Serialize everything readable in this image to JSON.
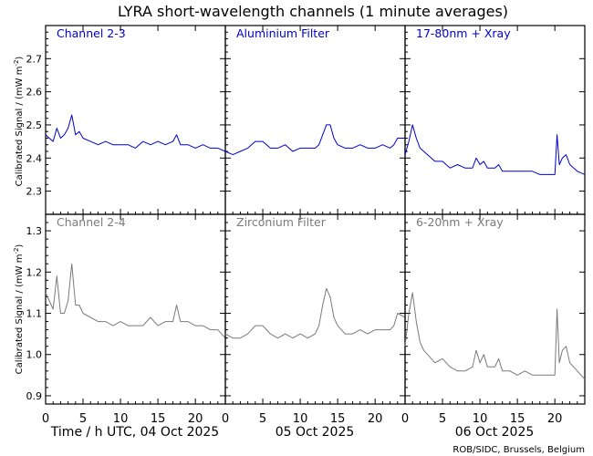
{
  "title": "LYRA short-wavelength channels (1 minute averages)",
  "credit": "ROB/SIDC, Brussels, Belgium",
  "ylabel_main": "Calibrated Signal / (mW m",
  "ylabel_sup": "-2",
  "ylabel_close": ")",
  "colors": {
    "top": "#0000cc",
    "bottom": "#7a7a7a",
    "axis": "#000000"
  },
  "x_ticks": [
    "0",
    "5",
    "10",
    "15",
    "20"
  ],
  "x_day_labels": [
    "Time / h UTC, 04 Oct 2025",
    "05 Oct 2025",
    "06 Oct 2025"
  ],
  "chart_data": [
    {
      "type": "line",
      "row": "top",
      "ylim": [
        2.23,
        2.8
      ],
      "yticks": [
        "2.3",
        "2.4",
        "2.5",
        "2.6",
        "2.7"
      ],
      "panels": [
        {
          "label": "Channel 2-3",
          "x": [
            0,
            0.5,
            1,
            1.5,
            2,
            2.5,
            3,
            3.5,
            4,
            4.5,
            5,
            6,
            7,
            8,
            9,
            10,
            11,
            12,
            13,
            14,
            15,
            16,
            17,
            17.5,
            18,
            19,
            20,
            21,
            22,
            23,
            24
          ],
          "y": [
            2.47,
            2.46,
            2.45,
            2.49,
            2.46,
            2.47,
            2.49,
            2.53,
            2.47,
            2.48,
            2.46,
            2.45,
            2.44,
            2.45,
            2.44,
            2.44,
            2.44,
            2.43,
            2.45,
            2.44,
            2.45,
            2.44,
            2.45,
            2.47,
            2.44,
            2.44,
            2.43,
            2.44,
            2.43,
            2.43,
            2.42
          ]
        },
        {
          "label": "Aluminium Filter",
          "x": [
            0,
            1,
            2,
            3,
            4,
            5,
            6,
            7,
            8,
            9,
            10,
            11,
            12,
            12.5,
            13,
            13.5,
            14,
            14.5,
            15,
            16,
            17,
            18,
            19,
            20,
            21,
            22,
            22.5,
            23,
            24
          ],
          "y": [
            2.42,
            2.41,
            2.42,
            2.43,
            2.45,
            2.45,
            2.43,
            2.43,
            2.44,
            2.42,
            2.43,
            2.43,
            2.43,
            2.44,
            2.47,
            2.5,
            2.5,
            2.46,
            2.44,
            2.43,
            2.43,
            2.44,
            2.43,
            2.43,
            2.44,
            2.43,
            2.44,
            2.46,
            2.46
          ]
        },
        {
          "label": "17-80nm + Xray",
          "x": [
            0,
            0.5,
            1,
            1.5,
            2,
            2.5,
            3,
            4,
            5,
            6,
            7,
            8,
            9,
            9.5,
            10,
            10.5,
            11,
            12,
            12.5,
            13,
            14,
            15,
            16,
            17,
            18,
            19,
            20,
            20.3,
            20.6,
            21,
            21.5,
            22,
            23,
            24
          ],
          "y": [
            2.41,
            2.45,
            2.5,
            2.46,
            2.43,
            2.42,
            2.41,
            2.39,
            2.39,
            2.37,
            2.38,
            2.37,
            2.37,
            2.4,
            2.38,
            2.39,
            2.37,
            2.37,
            2.38,
            2.36,
            2.36,
            2.36,
            2.36,
            2.36,
            2.35,
            2.35,
            2.35,
            2.47,
            2.38,
            2.4,
            2.41,
            2.38,
            2.36,
            2.35
          ]
        }
      ]
    },
    {
      "type": "line",
      "row": "bottom",
      "ylim": [
        0.88,
        1.34
      ],
      "yticks": [
        "0.9",
        "1.0",
        "1.1",
        "1.2",
        "1.3"
      ],
      "panels": [
        {
          "label": "Channel 2-4",
          "x": [
            0,
            0.5,
            1,
            1.5,
            2,
            2.5,
            3,
            3.5,
            4,
            4.5,
            5,
            6,
            7,
            8,
            9,
            10,
            11,
            12,
            13,
            14,
            15,
            16,
            17,
            17.5,
            18,
            19,
            20,
            21,
            22,
            23,
            24
          ],
          "y": [
            1.15,
            1.13,
            1.11,
            1.19,
            1.1,
            1.1,
            1.13,
            1.22,
            1.12,
            1.12,
            1.1,
            1.09,
            1.08,
            1.08,
            1.07,
            1.08,
            1.07,
            1.07,
            1.07,
            1.09,
            1.07,
            1.08,
            1.08,
            1.12,
            1.08,
            1.08,
            1.07,
            1.07,
            1.06,
            1.06,
            1.04
          ]
        },
        {
          "label": "Zirconium Filter",
          "x": [
            0,
            1,
            2,
            3,
            4,
            5,
            6,
            7,
            8,
            9,
            10,
            11,
            12,
            12.5,
            13,
            13.5,
            14,
            14.5,
            15,
            16,
            17,
            18,
            19,
            20,
            21,
            22,
            22.5,
            23,
            24
          ],
          "y": [
            1.05,
            1.04,
            1.04,
            1.05,
            1.07,
            1.07,
            1.05,
            1.04,
            1.05,
            1.04,
            1.05,
            1.04,
            1.05,
            1.07,
            1.12,
            1.16,
            1.14,
            1.09,
            1.07,
            1.05,
            1.05,
            1.06,
            1.05,
            1.06,
            1.06,
            1.06,
            1.07,
            1.1,
            1.09
          ]
        },
        {
          "label": "6-20nm + Xray",
          "x": [
            0,
            0.5,
            1,
            1.5,
            2,
            2.5,
            3,
            4,
            5,
            6,
            7,
            8,
            9,
            9.5,
            10,
            10.5,
            11,
            12,
            12.5,
            13,
            14,
            15,
            16,
            17,
            18,
            19,
            20,
            20.3,
            20.6,
            21,
            21.5,
            22,
            23,
            24
          ],
          "y": [
            1.02,
            1.1,
            1.15,
            1.08,
            1.03,
            1.01,
            1.0,
            0.98,
            0.99,
            0.97,
            0.96,
            0.96,
            0.97,
            1.01,
            0.98,
            1.0,
            0.97,
            0.97,
            0.99,
            0.96,
            0.96,
            0.95,
            0.96,
            0.95,
            0.95,
            0.95,
            0.95,
            1.11,
            0.98,
            1.01,
            1.02,
            0.98,
            0.96,
            0.94
          ]
        }
      ]
    }
  ]
}
